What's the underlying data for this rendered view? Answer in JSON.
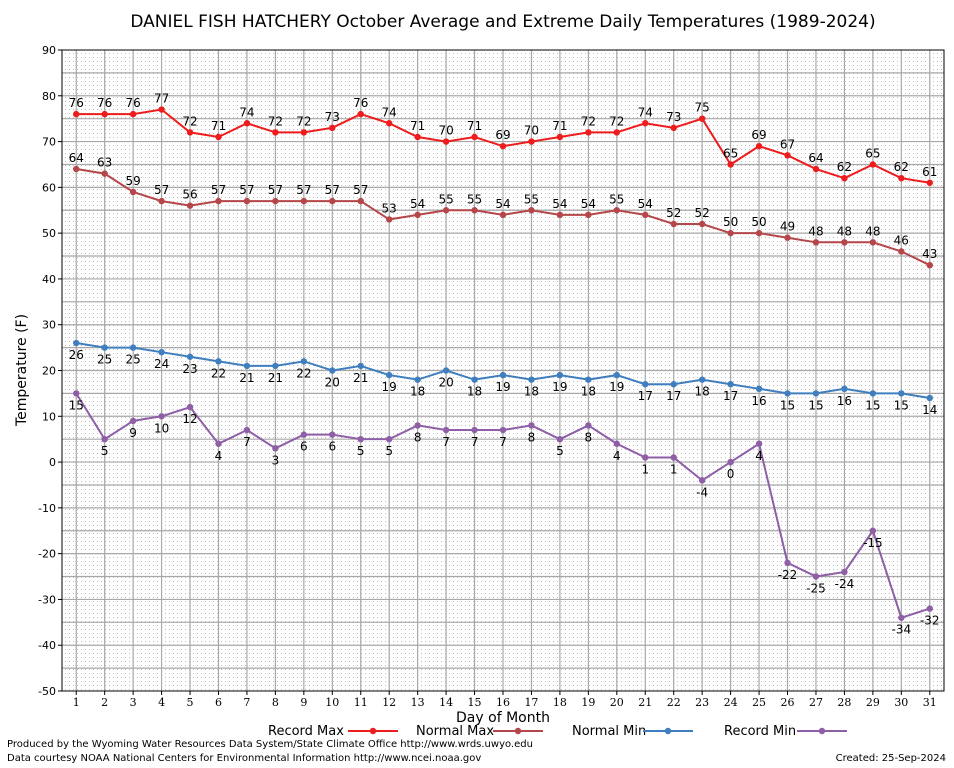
{
  "chart_data": {
    "type": "line",
    "title": "DANIEL FISH HATCHERY October Average and Extreme Daily Temperatures (1989-2024)",
    "xlabel": "Day of Month",
    "ylabel": "Temperature (F)",
    "ylim": [
      -50,
      90
    ],
    "yticks": [
      -50,
      -40,
      -30,
      -20,
      -10,
      0,
      10,
      20,
      30,
      40,
      50,
      60,
      70,
      80,
      90
    ],
    "x": [
      1,
      2,
      3,
      4,
      5,
      6,
      7,
      8,
      9,
      10,
      11,
      12,
      13,
      14,
      15,
      16,
      17,
      18,
      19,
      20,
      21,
      22,
      23,
      24,
      25,
      26,
      27,
      28,
      29,
      30,
      31
    ],
    "grid": true,
    "legend_position": "bottom",
    "series": [
      {
        "name": "Record Max",
        "color": "#ee1c1c",
        "label_pos": "above",
        "values": [
          76,
          76,
          76,
          77,
          72,
          71,
          74,
          72,
          72,
          73,
          76,
          74,
          71,
          70,
          71,
          69,
          70,
          71,
          72,
          72,
          74,
          73,
          75,
          65,
          69,
          67,
          64,
          62,
          65,
          62,
          61
        ]
      },
      {
        "name": "Normal Max",
        "color": "#b5474a",
        "label_pos": "above",
        "values": [
          64,
          63,
          59,
          57,
          56,
          57,
          57,
          57,
          57,
          57,
          57,
          53,
          54,
          55,
          55,
          54,
          55,
          54,
          54,
          55,
          54,
          52,
          52,
          50,
          50,
          49,
          48,
          48,
          48,
          46,
          43
        ]
      },
      {
        "name": "Normal Min",
        "color": "#3f7fbf",
        "label_pos": "below",
        "values": [
          26,
          25,
          25,
          24,
          23,
          22,
          21,
          21,
          22,
          20,
          21,
          19,
          18,
          20,
          18,
          19,
          18,
          19,
          18,
          19,
          17,
          17,
          18,
          17,
          16,
          15,
          15,
          16,
          15,
          15,
          14
        ]
      },
      {
        "name": "Record Min",
        "color": "#8e5ea6",
        "label_pos": "below",
        "values": [
          15,
          5,
          9,
          10,
          12,
          4,
          7,
          3,
          6,
          6,
          5,
          5,
          8,
          7,
          7,
          7,
          8,
          5,
          8,
          4,
          1,
          1,
          -4,
          0,
          4,
          -22,
          -25,
          -24,
          -15,
          -34,
          -32
        ]
      }
    ]
  },
  "footer": {
    "produced_by": "Produced by the Wyoming Water Resources Data System/State Climate Office http://www.wrds.uwyo.edu",
    "courtesy": "Data courtesy NOAA National Centers for Environmental Information http://www.ncei.noaa.gov",
    "created": "Created:  25-Sep-2024"
  }
}
